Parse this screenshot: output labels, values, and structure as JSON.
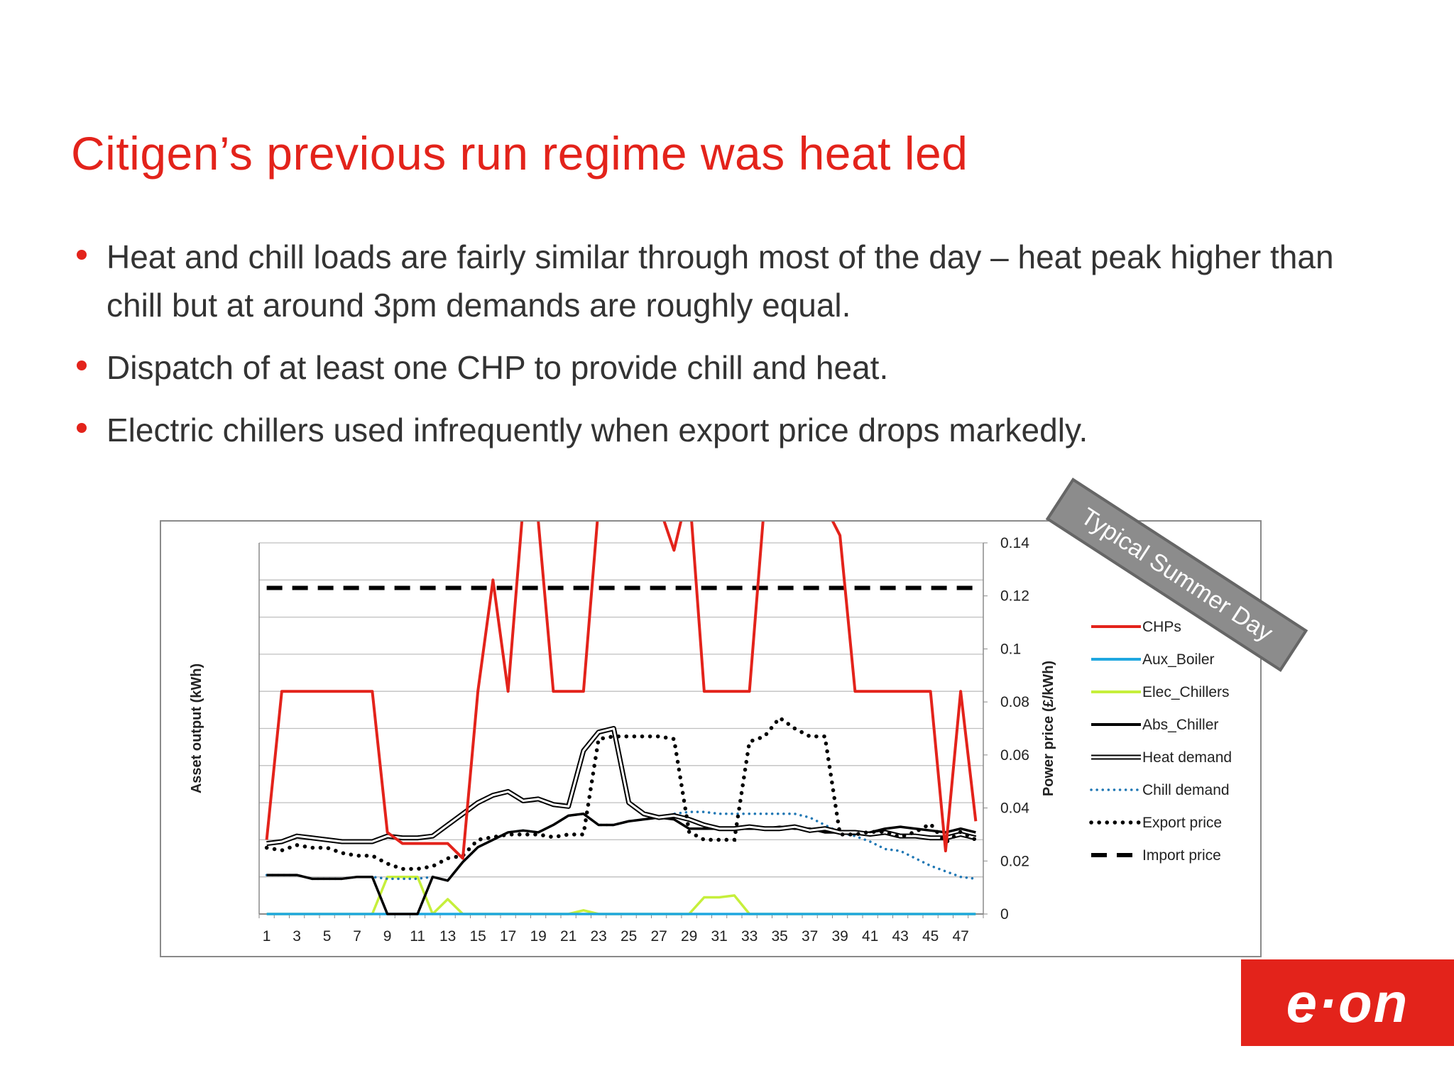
{
  "slide": {
    "title": "Citigen’s previous run regime was heat led",
    "bullets": [
      "Heat and chill loads are fairly similar through most of the day – heat peak higher than chill but at around 3pm demands are roughly equal.",
      "Dispatch of at least one  CHP to provide chill and heat.",
      "Electric chillers used infrequently when export price drops markedly."
    ],
    "badge": "Typical Summer Day",
    "logo": "e·on",
    "colors": {
      "accent": "#e3231b"
    }
  },
  "chart_data": {
    "type": "line",
    "ylabel_left": "Asset output (kWh)",
    "ylabel_right": "Power price (£/kWh)",
    "x": [
      1,
      2,
      3,
      4,
      5,
      6,
      7,
      8,
      9,
      10,
      11,
      12,
      13,
      14,
      15,
      16,
      17,
      18,
      19,
      20,
      21,
      22,
      23,
      24,
      25,
      26,
      27,
      28,
      29,
      30,
      31,
      32,
      33,
      34,
      35,
      36,
      37,
      38,
      39,
      40,
      41,
      42,
      43,
      44,
      45,
      46,
      47,
      48
    ],
    "x_tick_labels": [
      "1",
      "3",
      "5",
      "7",
      "9",
      "11",
      "13",
      "15",
      "17",
      "19",
      "21",
      "23",
      "25",
      "27",
      "29",
      "31",
      "33",
      "35",
      "37",
      "39",
      "41",
      "43",
      "45",
      "47"
    ],
    "right_axis": {
      "ylim": [
        0,
        0.14
      ],
      "ticks": [
        "0",
        "0.02",
        "0.04",
        "0.06",
        "0.08",
        "0.1",
        "0.12",
        "0.14"
      ]
    },
    "left_axis_gridlines": 9,
    "grid": true,
    "legend_position": "right",
    "series": [
      {
        "name": "CHPs",
        "axis": "left",
        "color": "#e3231b",
        "style": "solid",
        "values": [
          2,
          6,
          6,
          6,
          6,
          6,
          6,
          6,
          2.2,
          1.9,
          1.9,
          1.9,
          1.9,
          1.5,
          6,
          9,
          6,
          11,
          10.6,
          6,
          6,
          6,
          11,
          12,
          12,
          12,
          11,
          9.8,
          11.5,
          6,
          6,
          6,
          6,
          11.1,
          11,
          11.2,
          11.1,
          11,
          10.2,
          6,
          6,
          6,
          6,
          6,
          6,
          1.7,
          6,
          2.5
        ]
      },
      {
        "name": "Aux_Boiler",
        "axis": "left",
        "color": "#1fa7e0",
        "style": "solid",
        "values": [
          0,
          0,
          0,
          0,
          0,
          0,
          0,
          0,
          0,
          0,
          0,
          0,
          0,
          0,
          0,
          0,
          0,
          0,
          0,
          0,
          0,
          0,
          0,
          0,
          0,
          0,
          0,
          0,
          0,
          0,
          0,
          0,
          0,
          0,
          0,
          0,
          0,
          0,
          0,
          0,
          0,
          0,
          0,
          0,
          0,
          0,
          0,
          0
        ]
      },
      {
        "name": "Elec_Chillers",
        "axis": "left",
        "color": "#c6ef3b",
        "style": "solid",
        "values": [
          0,
          0,
          0,
          0,
          0,
          0,
          0,
          0,
          1,
          1,
          1,
          0,
          0.4,
          0,
          0,
          0,
          0,
          0,
          0,
          0,
          0,
          0.1,
          0,
          0,
          0,
          0,
          0,
          0,
          0,
          0.45,
          0.45,
          0.5,
          0,
          0,
          0,
          0,
          0,
          0,
          0,
          0,
          0,
          0,
          0,
          0,
          0,
          0,
          0,
          0
        ]
      },
      {
        "name": "Abs_Chiller",
        "axis": "left",
        "color": "#000000",
        "style": "solid",
        "values": [
          1.05,
          1.05,
          1.05,
          0.95,
          0.95,
          0.95,
          1.0,
          1.0,
          0,
          0,
          0,
          1.0,
          0.9,
          1.4,
          1.8,
          2.0,
          2.2,
          2.25,
          2.2,
          2.4,
          2.65,
          2.7,
          2.4,
          2.4,
          2.5,
          2.55,
          2.6,
          2.55,
          2.3,
          2.3,
          2.3,
          2.3,
          2.3,
          2.3,
          2.35,
          2.3,
          2.3,
          2.2,
          2.2,
          2.15,
          2.2,
          2.3,
          2.35,
          2.3,
          2.25,
          2.2,
          2.3,
          2.2
        ]
      },
      {
        "name": "Heat demand",
        "axis": "left",
        "color": "#000000",
        "style": "double",
        "values": [
          1.9,
          1.95,
          2.1,
          2.05,
          2.0,
          1.95,
          1.95,
          1.95,
          2.1,
          2.05,
          2.05,
          2.1,
          2.4,
          2.7,
          3.0,
          3.2,
          3.3,
          3.05,
          3.1,
          2.95,
          2.9,
          4.4,
          4.9,
          5.0,
          3.0,
          2.7,
          2.6,
          2.65,
          2.55,
          2.4,
          2.3,
          2.3,
          2.35,
          2.3,
          2.3,
          2.35,
          2.25,
          2.3,
          2.2,
          2.2,
          2.15,
          2.2,
          2.1,
          2.1,
          2.05,
          2.05,
          2.15,
          2.05
        ]
      },
      {
        "name": "Chill demand",
        "axis": "left",
        "color": "#1f77b4",
        "style": "dotted",
        "values": [
          1.05,
          1.05,
          1.05,
          0.95,
          0.95,
          0.95,
          1.0,
          1.0,
          0.95,
          0.95,
          0.95,
          1.0,
          0.9,
          1.4,
          1.8,
          2.0,
          2.2,
          2.25,
          2.2,
          2.4,
          2.65,
          2.7,
          2.4,
          2.4,
          2.5,
          2.55,
          2.6,
          2.7,
          2.75,
          2.75,
          2.7,
          2.7,
          2.7,
          2.7,
          2.7,
          2.7,
          2.6,
          2.4,
          2.2,
          2.1,
          1.95,
          1.75,
          1.7,
          1.5,
          1.3,
          1.15,
          1.0,
          0.95
        ]
      },
      {
        "name": "Export price",
        "axis": "right",
        "color": "#000000",
        "style": "dotted",
        "values": [
          0.025,
          0.024,
          0.026,
          0.025,
          0.025,
          0.023,
          0.022,
          0.022,
          0.019,
          0.017,
          0.017,
          0.018,
          0.021,
          0.022,
          0.028,
          0.029,
          0.03,
          0.03,
          0.03,
          0.029,
          0.03,
          0.03,
          0.066,
          0.067,
          0.067,
          0.067,
          0.067,
          0.066,
          0.031,
          0.028,
          0.028,
          0.028,
          0.065,
          0.067,
          0.074,
          0.07,
          0.067,
          0.067,
          0.03,
          0.03,
          0.031,
          0.031,
          0.029,
          0.031,
          0.034,
          0.027,
          0.031,
          0.028
        ]
      },
      {
        "name": "Import price",
        "axis": "right",
        "color": "#000000",
        "style": "dashed",
        "values": [
          0.123,
          0.123,
          0.123,
          0.123,
          0.123,
          0.123,
          0.123,
          0.123,
          0.123,
          0.123,
          0.123,
          0.123,
          0.123,
          0.123,
          0.123,
          0.123,
          0.123,
          0.123,
          0.123,
          0.123,
          0.123,
          0.123,
          0.123,
          0.123,
          0.123,
          0.123,
          0.123,
          0.123,
          0.123,
          0.123,
          0.123,
          0.123,
          0.123,
          0.123,
          0.123,
          0.123,
          0.123,
          0.123,
          0.123,
          0.123,
          0.123,
          0.123,
          0.123,
          0.123,
          0.123,
          0.123,
          0.123,
          0.123
        ]
      }
    ]
  }
}
